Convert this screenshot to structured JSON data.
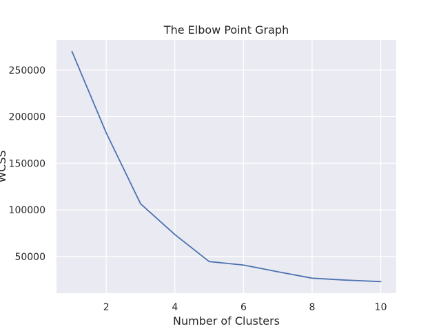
{
  "chart_data": {
    "type": "line",
    "title": "The Elbow Point Graph",
    "xlabel": "Number of Clusters",
    "ylabel": "WCSS",
    "x": [
      1,
      2,
      3,
      4,
      5,
      6,
      7,
      8,
      9,
      10
    ],
    "series": [
      {
        "values": [
          270000,
          182500,
          106500,
          73500,
          44500,
          40800,
          33600,
          26700,
          24600,
          23000
        ]
      }
    ],
    "xlim": [
      0.55,
      10.45
    ],
    "ylim": [
      10700,
      282300
    ],
    "xticks": [
      2,
      4,
      6,
      8,
      10
    ],
    "yticks": [
      50000,
      100000,
      150000,
      200000,
      250000
    ],
    "grid": true,
    "legend": "none",
    "colors": {
      "line": "#4c72b0",
      "plot_background": "#eaeaf2",
      "grid": "#ffffff",
      "text": "#262626"
    }
  }
}
